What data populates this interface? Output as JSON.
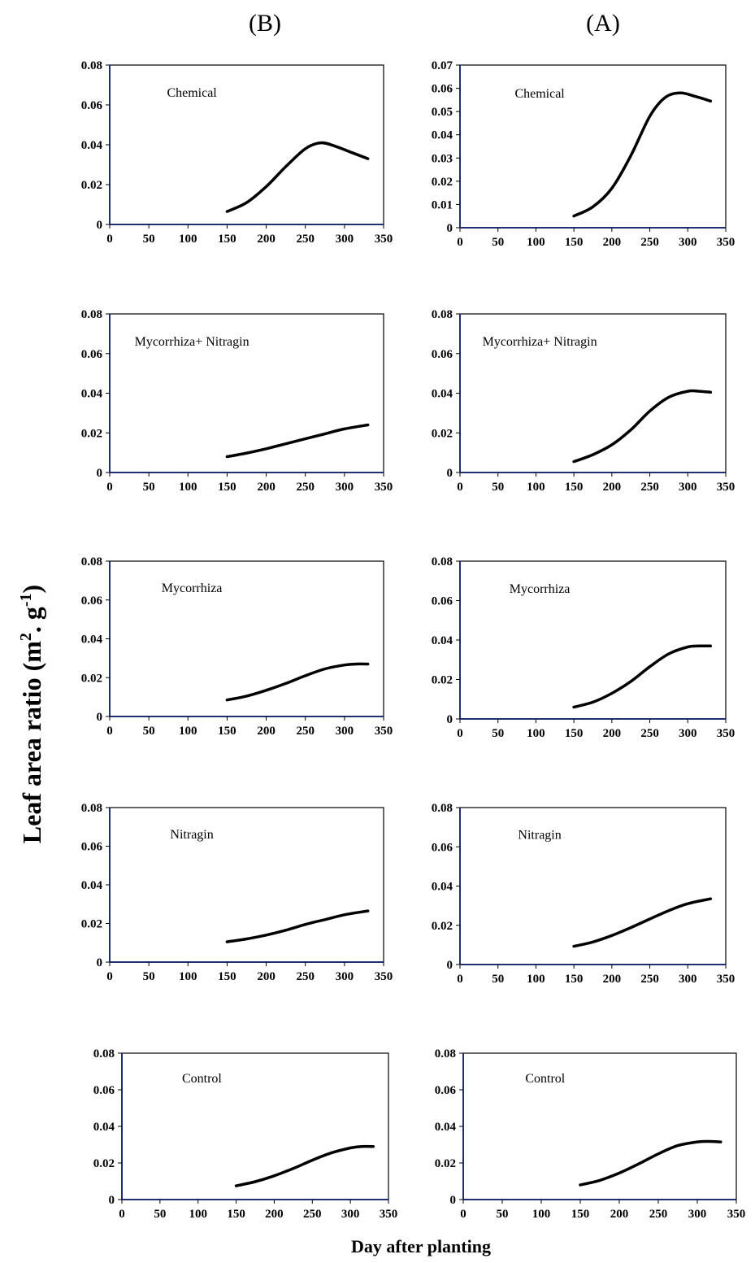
{
  "figure": {
    "column_titles": [
      "(B)",
      "(A)"
    ],
    "ylabel_main": "Leaf area ratio (m",
    "ylabel_sup1": "2",
    "ylabel_mid": ". g",
    "ylabel_sup2": "-1",
    "ylabel_end": ")",
    "xlabel": "Day after planting"
  },
  "chart_data": [
    {
      "type": "line",
      "column": "(B)",
      "row": 1,
      "label": "Chemical",
      "xlim": [
        0,
        350
      ],
      "xticks": [
        0,
        50,
        100,
        150,
        200,
        250,
        300,
        350
      ],
      "ylim": [
        0,
        0.08
      ],
      "yticks": [
        "0",
        "0.02",
        "0.04",
        "0.06",
        "0.08"
      ],
      "x": [
        150,
        175,
        200,
        225,
        250,
        270,
        290,
        310,
        330
      ],
      "y": [
        0.0065,
        0.011,
        0.019,
        0.029,
        0.038,
        0.041,
        0.039,
        0.036,
        0.033
      ]
    },
    {
      "type": "line",
      "column": "(A)",
      "row": 1,
      "label": "Chemical",
      "xlim": [
        0,
        350
      ],
      "xticks": [
        0,
        50,
        100,
        150,
        200,
        250,
        300,
        350
      ],
      "ylim": [
        0,
        0.07
      ],
      "yticks": [
        "0",
        "0.01",
        "0.02",
        "0.03",
        "0.04",
        "0.05",
        "0.06",
        "0.07"
      ],
      "x": [
        150,
        175,
        200,
        225,
        250,
        270,
        290,
        310,
        330
      ],
      "y": [
        0.005,
        0.009,
        0.017,
        0.031,
        0.048,
        0.056,
        0.058,
        0.0565,
        0.0545
      ]
    },
    {
      "type": "line",
      "column": "(B)",
      "row": 2,
      "label": "Mycorrhiza+ Nitragin",
      "xlim": [
        0,
        350
      ],
      "xticks": [
        0,
        50,
        100,
        150,
        200,
        250,
        300,
        350
      ],
      "ylim": [
        0,
        0.08
      ],
      "yticks": [
        "0",
        "0.02",
        "0.04",
        "0.06",
        "0.08"
      ],
      "x": [
        150,
        175,
        200,
        225,
        250,
        275,
        300,
        330
      ],
      "y": [
        0.008,
        0.0098,
        0.012,
        0.0145,
        0.017,
        0.0195,
        0.022,
        0.024
      ]
    },
    {
      "type": "line",
      "column": "(A)",
      "row": 2,
      "label": "Mycorrhiza+ Nitragin",
      "xlim": [
        0,
        350
      ],
      "xticks": [
        0,
        50,
        100,
        150,
        200,
        250,
        300,
        350
      ],
      "ylim": [
        0,
        0.08
      ],
      "yticks": [
        "0",
        "0.02",
        "0.04",
        "0.06",
        "0.08"
      ],
      "x": [
        150,
        175,
        200,
        225,
        250,
        275,
        300,
        315,
        330
      ],
      "y": [
        0.0055,
        0.009,
        0.014,
        0.0215,
        0.031,
        0.038,
        0.041,
        0.041,
        0.0405
      ]
    },
    {
      "type": "line",
      "column": "(B)",
      "row": 3,
      "label": "Mycorrhiza",
      "xlim": [
        0,
        350
      ],
      "xticks": [
        0,
        50,
        100,
        150,
        200,
        250,
        300,
        350
      ],
      "ylim": [
        0,
        0.08
      ],
      "yticks": [
        "0",
        "0.02",
        "0.04",
        "0.06",
        "0.08"
      ],
      "x": [
        150,
        175,
        200,
        225,
        250,
        275,
        300,
        315,
        330
      ],
      "y": [
        0.0085,
        0.0105,
        0.0135,
        0.017,
        0.021,
        0.0245,
        0.0265,
        0.027,
        0.027
      ]
    },
    {
      "type": "line",
      "column": "(A)",
      "row": 3,
      "label": "Mycorrhiza",
      "xlim": [
        0,
        350
      ],
      "xticks": [
        0,
        50,
        100,
        150,
        200,
        250,
        300,
        350
      ],
      "ylim": [
        0,
        0.08
      ],
      "yticks": [
        "0",
        "0.02",
        "0.04",
        "0.06",
        "0.08"
      ],
      "x": [
        150,
        175,
        200,
        225,
        250,
        275,
        300,
        315,
        330
      ],
      "y": [
        0.006,
        0.0085,
        0.013,
        0.019,
        0.0265,
        0.033,
        0.0365,
        0.037,
        0.037
      ]
    },
    {
      "type": "line",
      "column": "(B)",
      "row": 4,
      "label": "Nitragin",
      "xlim": [
        0,
        350
      ],
      "xticks": [
        0,
        50,
        100,
        150,
        200,
        250,
        300,
        350
      ],
      "ylim": [
        0,
        0.08
      ],
      "yticks": [
        "0",
        "0.02",
        "0.04",
        "0.06",
        "0.08"
      ],
      "x": [
        150,
        175,
        200,
        225,
        250,
        275,
        300,
        330
      ],
      "y": [
        0.0105,
        0.012,
        0.014,
        0.0165,
        0.0195,
        0.022,
        0.0245,
        0.0265
      ]
    },
    {
      "type": "line",
      "column": "(A)",
      "row": 4,
      "label": "Nitragin",
      "xlim": [
        0,
        350
      ],
      "xticks": [
        0,
        50,
        100,
        150,
        200,
        250,
        300,
        350
      ],
      "ylim": [
        0,
        0.08
      ],
      "yticks": [
        "0",
        "0.02",
        "0.04",
        "0.06",
        "0.08"
      ],
      "x": [
        150,
        175,
        200,
        225,
        250,
        275,
        300,
        330
      ],
      "y": [
        0.0093,
        0.0115,
        0.0148,
        0.0188,
        0.0232,
        0.0275,
        0.031,
        0.0335
      ]
    },
    {
      "type": "line",
      "column": "(B)",
      "row": 5,
      "label": "Control",
      "xlim": [
        0,
        350
      ],
      "xticks": [
        0,
        50,
        100,
        150,
        200,
        250,
        300,
        350
      ],
      "ylim": [
        0,
        0.08
      ],
      "yticks": [
        "0",
        "0.02",
        "0.04",
        "0.06",
        "0.08"
      ],
      "x": [
        150,
        175,
        200,
        225,
        250,
        275,
        300,
        315,
        330
      ],
      "y": [
        0.0075,
        0.0098,
        0.013,
        0.017,
        0.0215,
        0.0255,
        0.0282,
        0.029,
        0.029
      ]
    },
    {
      "type": "line",
      "column": "(A)",
      "row": 5,
      "label": "Control",
      "xlim": [
        0,
        350
      ],
      "xticks": [
        0,
        50,
        100,
        150,
        200,
        250,
        300,
        350
      ],
      "ylim": [
        0,
        0.08
      ],
      "yticks": [
        "0",
        "0.02",
        "0.04",
        "0.06",
        "0.08"
      ],
      "x": [
        150,
        175,
        200,
        225,
        250,
        275,
        300,
        315,
        330
      ],
      "y": [
        0.008,
        0.0105,
        0.0145,
        0.0195,
        0.025,
        0.0295,
        0.0315,
        0.0318,
        0.0315
      ]
    }
  ]
}
